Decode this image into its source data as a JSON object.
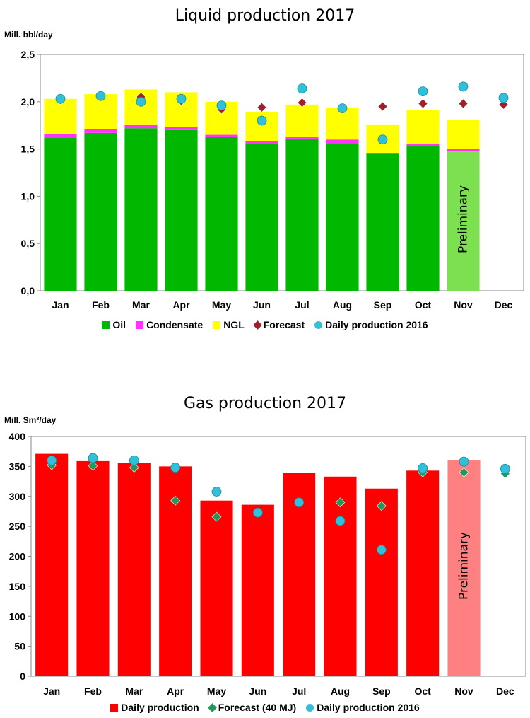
{
  "chart_data": [
    {
      "type": "bar",
      "stacked": true,
      "title": "Liquid production 2017",
      "ylabel": "Mill. bbl/day",
      "ylim": [
        0,
        2.5
      ],
      "yticks": [
        "0,0",
        "0,5",
        "1,0",
        "1,5",
        "2,0",
        "2,5"
      ],
      "categories": [
        "Jan",
        "Feb",
        "Mar",
        "Apr",
        "May",
        "Jun",
        "Jul",
        "Aug",
        "Sep",
        "Oct",
        "Nov",
        "Dec"
      ],
      "series": [
        {
          "name": "Oil",
          "kind": "bar",
          "color": "#00b800",
          "values": [
            1.62,
            1.67,
            1.72,
            1.7,
            1.63,
            1.55,
            1.61,
            1.56,
            1.45,
            1.53,
            1.48,
            null
          ]
        },
        {
          "name": "Condensate",
          "kind": "bar",
          "color": "#ff33ff",
          "values": [
            0.04,
            0.04,
            0.04,
            0.03,
            0.02,
            0.03,
            0.02,
            0.04,
            0.01,
            0.02,
            0.02,
            null
          ]
        },
        {
          "name": "NGL",
          "kind": "bar",
          "color": "#ffff00",
          "values": [
            0.37,
            0.37,
            0.37,
            0.37,
            0.35,
            0.31,
            0.34,
            0.34,
            0.3,
            0.36,
            0.31,
            null
          ]
        },
        {
          "name": "Forecast",
          "kind": "diamond",
          "color": "#a0202a",
          "values": [
            2.02,
            2.07,
            2.05,
            2.01,
            1.92,
            1.94,
            1.99,
            1.93,
            1.95,
            1.98,
            1.98,
            1.97
          ]
        },
        {
          "name": "Daily production 2016",
          "kind": "circle",
          "color": "#30c0d8",
          "values": [
            2.03,
            2.06,
            2.0,
            2.03,
            1.96,
            1.8,
            2.14,
            1.93,
            1.6,
            2.11,
            2.16,
            2.04
          ]
        }
      ],
      "preliminary_index": 10,
      "preliminary_label": "Preliminary",
      "preliminary_colors": {
        "Oil": "#7de050"
      },
      "legend_position": "bottom",
      "grid": false
    },
    {
      "type": "bar",
      "title": "Gas production 2017",
      "ylabel": "Mill. Sm³/day",
      "ylim": [
        0,
        400
      ],
      "yticks": [
        "0",
        "50",
        "100",
        "150",
        "200",
        "250",
        "300",
        "350",
        "400"
      ],
      "categories": [
        "Jan",
        "Feb",
        "Mar",
        "Apr",
        "May",
        "Jun",
        "Jul",
        "Aug",
        "Sep",
        "Oct",
        "Nov",
        "Dec"
      ],
      "series": [
        {
          "name": "Daily production",
          "kind": "bar",
          "color": "#ff0000",
          "values": [
            371,
            360,
            356,
            350,
            293,
            286,
            339,
            333,
            313,
            343,
            361,
            null
          ]
        },
        {
          "name": "Forecast (40 MJ)",
          "kind": "diamond",
          "color": "#1e9a5a",
          "values": [
            352,
            351,
            348,
            293,
            266,
            null,
            null,
            290,
            284,
            340,
            340,
            338
          ]
        },
        {
          "name": "Daily production 2016",
          "kind": "circle",
          "color": "#30c0d8",
          "values": [
            360,
            364,
            360,
            348,
            308,
            273,
            290,
            259,
            211,
            347,
            358,
            346
          ]
        }
      ],
      "preliminary_index": 10,
      "preliminary_label": "Preliminary",
      "preliminary_colors": {
        "Daily production": "#ff8080"
      },
      "legend_position": "bottom",
      "grid": false
    }
  ]
}
